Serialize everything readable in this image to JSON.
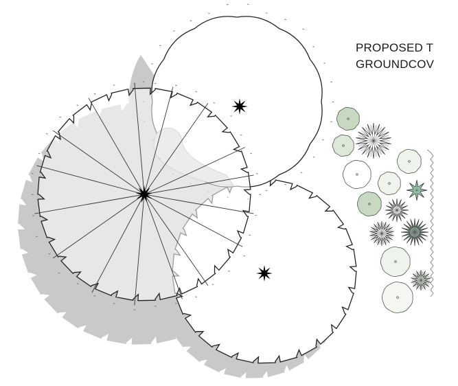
{
  "labels": {
    "line1": "PROPOSED T",
    "line2": "GROUNDCOV"
  },
  "colors": {
    "outline": "#222222",
    "shadow": "#c9c9c9",
    "trunk": "#000000",
    "sage": "#dde8d8",
    "sage_dark": "#c8d9c2",
    "mint": "#eef3ec",
    "fern": "#9fcfb6"
  },
  "icons": [
    "tree-canopy-outline",
    "tree-trunk-star",
    "shrub-symbol",
    "groundcover-symbol",
    "hedge-line"
  ]
}
